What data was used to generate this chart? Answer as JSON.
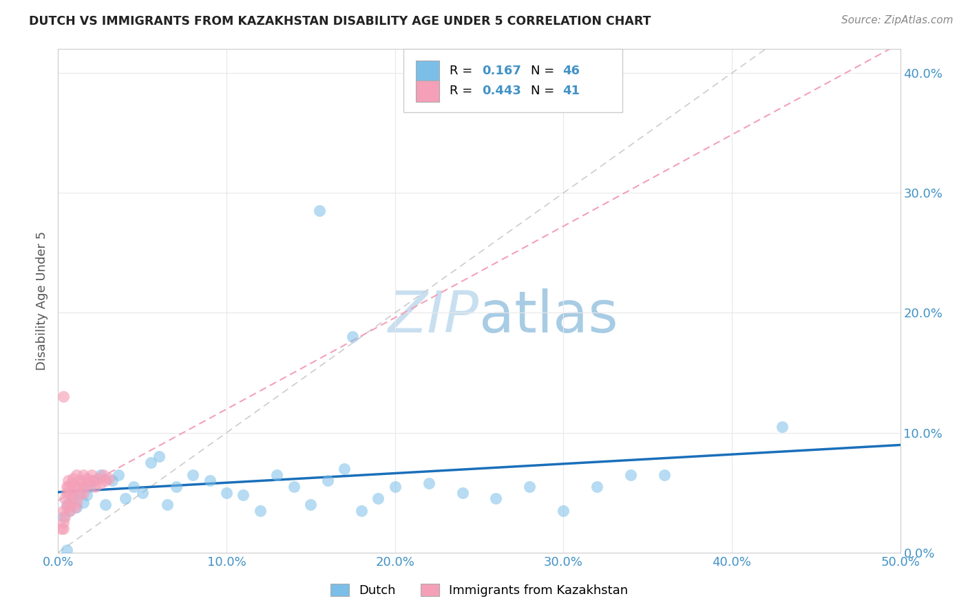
{
  "title": "DUTCH VS IMMIGRANTS FROM KAZAKHSTAN DISABILITY AGE UNDER 5 CORRELATION CHART",
  "source": "Source: ZipAtlas.com",
  "ylabel": "Disability Age Under 5",
  "xlim": [
    0.0,
    0.5
  ],
  "ylim": [
    0.0,
    0.42
  ],
  "xtick_vals": [
    0.0,
    0.1,
    0.2,
    0.3,
    0.4,
    0.5
  ],
  "ytick_vals": [
    0.0,
    0.1,
    0.2,
    0.3,
    0.4
  ],
  "dutch_R": 0.167,
  "dutch_N": 46,
  "kaz_R": 0.443,
  "kaz_N": 41,
  "dutch_color": "#7bbfe8",
  "kaz_color": "#f4a0b8",
  "dutch_line_color": "#1a6fba",
  "kaz_line_color": "#f4a0b8",
  "diag_color": "#cccccc",
  "tick_color": "#4292c6",
  "label_color": "#555555",
  "title_color": "#222222",
  "source_color": "#888888",
  "grid_color": "#e8e8e8",
  "bg_color": "#ffffff",
  "watermark_color": "#c8dff0",
  "dutch_x": [
    0.003,
    0.005,
    0.007,
    0.009,
    0.011,
    0.013,
    0.015,
    0.017,
    0.019,
    0.021,
    0.025,
    0.028,
    0.032,
    0.036,
    0.04,
    0.045,
    0.05,
    0.055,
    0.06,
    0.065,
    0.07,
    0.08,
    0.09,
    0.1,
    0.11,
    0.12,
    0.13,
    0.14,
    0.15,
    0.16,
    0.17,
    0.18,
    0.19,
    0.2,
    0.22,
    0.24,
    0.26,
    0.28,
    0.3,
    0.32,
    0.34,
    0.36,
    0.43,
    0.175,
    0.155,
    0.005
  ],
  "dutch_y": [
    0.03,
    0.04,
    0.035,
    0.045,
    0.038,
    0.05,
    0.042,
    0.048,
    0.055,
    0.06,
    0.065,
    0.04,
    0.06,
    0.065,
    0.045,
    0.055,
    0.05,
    0.075,
    0.08,
    0.04,
    0.055,
    0.065,
    0.06,
    0.05,
    0.048,
    0.035,
    0.065,
    0.055,
    0.04,
    0.06,
    0.07,
    0.035,
    0.045,
    0.055,
    0.058,
    0.05,
    0.045,
    0.055,
    0.035,
    0.055,
    0.065,
    0.065,
    0.105,
    0.18,
    0.285,
    0.002
  ],
  "kaz_x": [
    0.002,
    0.003,
    0.003,
    0.004,
    0.004,
    0.005,
    0.005,
    0.005,
    0.006,
    0.006,
    0.006,
    0.007,
    0.007,
    0.008,
    0.008,
    0.009,
    0.009,
    0.01,
    0.01,
    0.011,
    0.011,
    0.012,
    0.013,
    0.013,
    0.014,
    0.015,
    0.015,
    0.016,
    0.017,
    0.018,
    0.019,
    0.02,
    0.021,
    0.022,
    0.024,
    0.025,
    0.027,
    0.028,
    0.03,
    0.003,
    0.003
  ],
  "kaz_y": [
    0.02,
    0.025,
    0.035,
    0.03,
    0.045,
    0.038,
    0.05,
    0.055,
    0.04,
    0.06,
    0.055,
    0.035,
    0.048,
    0.042,
    0.058,
    0.05,
    0.062,
    0.038,
    0.055,
    0.042,
    0.065,
    0.055,
    0.06,
    0.048,
    0.058,
    0.05,
    0.065,
    0.055,
    0.062,
    0.06,
    0.058,
    0.065,
    0.06,
    0.055,
    0.062,
    0.058,
    0.065,
    0.06,
    0.062,
    0.13,
    0.02
  ]
}
